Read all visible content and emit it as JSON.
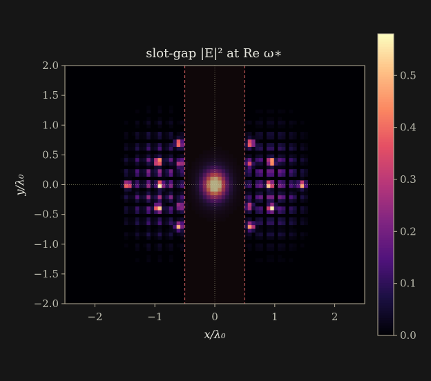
{
  "chart_data": {
    "type": "heatmap",
    "title": "slot-gap |E|² at Re ω∗",
    "xlabel": "x/λ₀",
    "ylabel": "y/λ₀",
    "xlim": [
      -2.5,
      2.5
    ],
    "ylim": [
      -2.0,
      2.0
    ],
    "x_ticks": [
      {
        "value": -2,
        "label": "−2"
      },
      {
        "value": -1,
        "label": "−1"
      },
      {
        "value": 0,
        "label": "0"
      },
      {
        "value": 1,
        "label": "1"
      },
      {
        "value": 2,
        "label": "2"
      }
    ],
    "y_ticks": [
      {
        "value": 2.0,
        "label": "2.0"
      },
      {
        "value": 1.5,
        "label": "1.5"
      },
      {
        "value": 1.0,
        "label": "1.0"
      },
      {
        "value": 0.5,
        "label": "0.5"
      },
      {
        "value": 0.0,
        "label": "0.0"
      },
      {
        "value": -0.5,
        "label": "−0.5"
      },
      {
        "value": -1.0,
        "label": "−1.0"
      },
      {
        "value": -1.5,
        "label": "−1.5"
      },
      {
        "value": -2.0,
        "label": "−2.0"
      }
    ],
    "colorbar": {
      "colormap": "magma",
      "range": [
        0.0,
        0.58
      ],
      "ticks": [
        {
          "value": 0.0,
          "label": "0.0"
        },
        {
          "value": 0.1,
          "label": "0.1"
        },
        {
          "value": 0.2,
          "label": "0.2"
        },
        {
          "value": 0.3,
          "label": "0.3"
        },
        {
          "value": 0.4,
          "label": "0.4"
        },
        {
          "value": 0.5,
          "label": "0.5"
        }
      ]
    },
    "slot_edges_x": [
      -0.5,
      0.5
    ],
    "field": {
      "central_peak": {
        "x": 0.0,
        "y": 0.0,
        "value": 0.58
      },
      "side_lobes": [
        {
          "x": -0.58,
          "y": 0.35,
          "value": 0.32
        },
        {
          "x": 0.58,
          "y": 0.35,
          "value": 0.32
        },
        {
          "x": -0.58,
          "y": -0.35,
          "value": 0.32
        },
        {
          "x": 0.58,
          "y": -0.35,
          "value": 0.32
        },
        {
          "x": -0.6,
          "y": 0.7,
          "value": 0.5
        },
        {
          "x": 0.6,
          "y": 0.7,
          "value": 0.5
        },
        {
          "x": -0.6,
          "y": -0.7,
          "value": 0.5
        },
        {
          "x": 0.6,
          "y": -0.7,
          "value": 0.5
        },
        {
          "x": -0.95,
          "y": 0.38,
          "value": 0.45
        },
        {
          "x": 0.95,
          "y": 0.38,
          "value": 0.45
        },
        {
          "x": -0.95,
          "y": -0.38,
          "value": 0.45
        },
        {
          "x": 0.95,
          "y": -0.38,
          "value": 0.45
        },
        {
          "x": -1.45,
          "y": 0.0,
          "value": 0.45
        },
        {
          "x": 1.45,
          "y": 0.0,
          "value": 0.45
        },
        {
          "x": -0.9,
          "y": 0.0,
          "value": 0.35
        },
        {
          "x": 0.9,
          "y": 0.0,
          "value": 0.35
        }
      ]
    },
    "grid": false
  },
  "colors": {
    "background": "#161616",
    "axes_frame": "#b8b09a",
    "slot_edge": "#e06666",
    "slot_fill": "#2a1414",
    "crosshair": "#c8c8a0"
  }
}
